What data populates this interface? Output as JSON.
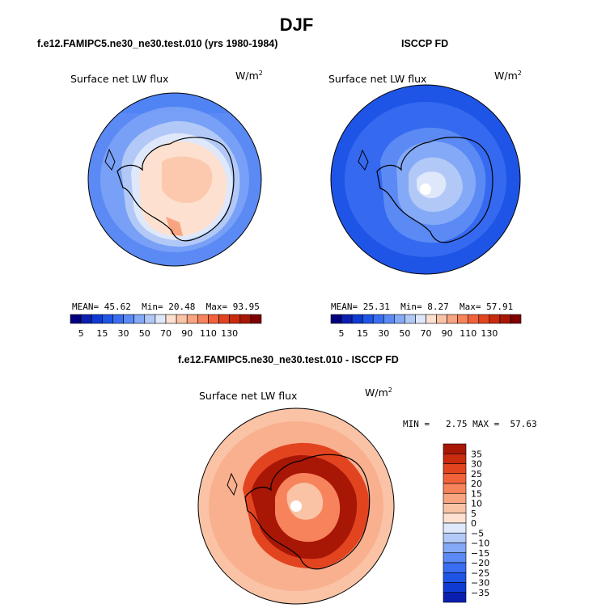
{
  "figure": {
    "title": "DJF",
    "colors": {
      "blue_scale": [
        "#00007f",
        "#0a1fb0",
        "#0f3bd4",
        "#1f55e6",
        "#3a6ef2",
        "#5b8af5",
        "#84a9f6",
        "#b2c9f7",
        "#dfe8fb"
      ],
      "red_scale": [
        "#fde0cf",
        "#fbc3a6",
        "#f9a481",
        "#f7835c",
        "#f2623a",
        "#e34420",
        "#c92b0f",
        "#a81706",
        "#7f0000"
      ],
      "coast": "#000000",
      "pole_marker": "#ffffff"
    }
  },
  "panels": [
    {
      "id": "model",
      "title": "f.e12.FAMIPC5.ne30_ne30.test.010 (yrs 1980-1984)",
      "variable": "Surface net LW flux",
      "units": "W/m",
      "units_exp": "2",
      "mean_label": "MEAN=",
      "mean": "45.62",
      "min_label": "Min=",
      "min": "20.48",
      "max_label": "Max=",
      "max": "93.95",
      "colorbar_ticks": [
        "5",
        "15",
        "30",
        "50",
        "70",
        "90",
        "110",
        "130"
      ]
    },
    {
      "id": "obs",
      "title": "ISCCP FD",
      "variable": "Surface net LW flux",
      "units": "W/m",
      "units_exp": "2",
      "mean_label": "MEAN=",
      "mean": "25.31",
      "min_label": "Min=",
      "min": "8.27",
      "max_label": "Max=",
      "max": "57.91",
      "colorbar_ticks": [
        "5",
        "15",
        "30",
        "50",
        "70",
        "90",
        "110",
        "130"
      ]
    },
    {
      "id": "diff",
      "title": "f.e12.FAMIPC5.ne30_ne30.test.010 - ISCCP FD",
      "variable": "Surface net LW flux",
      "units": "W/m",
      "units_exp": "2",
      "minmax": "MIN =   2.75 MAX =  57.63",
      "colorbar_ticks": [
        "35",
        "30",
        "25",
        "20",
        "15",
        "10",
        "5",
        "0",
        "−5",
        "−10",
        "−15",
        "−20",
        "−25",
        "−30",
        "−35"
      ]
    }
  ]
}
